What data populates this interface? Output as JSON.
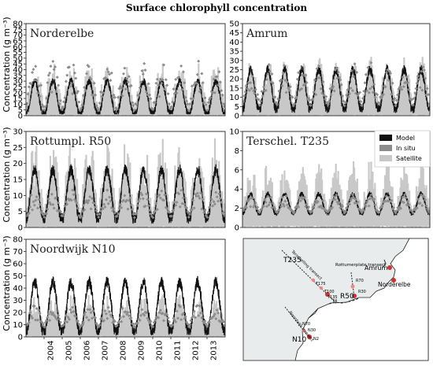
{
  "figure": {
    "title": "Surface chlorophyll concentration",
    "ylabel": "Concentration (g m⁻³)"
  },
  "colors": {
    "model": "#111111",
    "insitu": "#8c8c8c",
    "satellite": "#c8c8c8"
  },
  "legend": {
    "items": [
      "Model",
      "In situ",
      "Satellite"
    ],
    "placement": "top-right of Terschel. T235 panel"
  },
  "chart_data": [
    {
      "type": "line",
      "title": "Norderelbe",
      "ylim": [
        0,
        80
      ],
      "yticks": [
        0,
        5,
        10,
        15,
        20,
        25,
        30,
        35,
        40,
        45,
        50,
        55,
        60,
        65,
        70,
        75,
        80
      ],
      "ytick_labels": [
        "0",
        "5",
        "10",
        "15",
        "20",
        "25",
        "30",
        "35",
        "40",
        "45",
        "50",
        "55",
        "60",
        "65",
        "70",
        "75",
        "80"
      ],
      "xlim": [
        2003,
        2014
      ],
      "season": {
        "peak": 30,
        "base": 2,
        "sat_base": 5,
        "sat_peak": 40,
        "insitu_base": 4,
        "insitu_peak": 38
      }
    },
    {
      "type": "line",
      "title": "Amrum",
      "ylim": [
        0,
        50
      ],
      "yticks": [
        0,
        5,
        10,
        15,
        20,
        25,
        30,
        35,
        40,
        45,
        50
      ],
      "ytick_labels": [
        "0",
        "5",
        "10",
        "15",
        "20",
        "25",
        "30",
        "35",
        "40",
        "45",
        "50"
      ],
      "xlim": [
        2003,
        2014
      ],
      "season": {
        "peak": 25,
        "base": 4,
        "sat_base": 3,
        "sat_peak": 28,
        "insitu_base": 5,
        "insitu_peak": 24
      }
    },
    {
      "type": "line",
      "title": "Rottumpl. R50",
      "ylim": [
        0,
        30
      ],
      "yticks": [
        0,
        5,
        10,
        15,
        20,
        25,
        30
      ],
      "ytick_labels": [
        "0",
        "5",
        "10",
        "15",
        "20",
        "25",
        "30"
      ],
      "xlim": [
        2003,
        2014
      ],
      "season": {
        "peak": 18,
        "base": 3,
        "sat_base": 2,
        "sat_peak": 24,
        "insitu_base": 3,
        "insitu_peak": 10
      }
    },
    {
      "type": "line",
      "title": "Terschel. T235",
      "ylim": [
        0,
        10
      ],
      "yticks": [
        0,
        2,
        4,
        6,
        8,
        10
      ],
      "ytick_labels": [
        "0",
        "2",
        "4",
        "6",
        "8",
        "10"
      ],
      "xlim": [
        2003,
        2014
      ],
      "season": {
        "peak": 3.5,
        "base": 1.5,
        "sat_base": 1,
        "sat_peak": 6,
        "insitu_base": 1.5,
        "insitu_peak": 3
      }
    },
    {
      "type": "line",
      "title": "Noordwijk N10",
      "ylim": [
        0,
        80
      ],
      "yticks": [
        0,
        10,
        20,
        30,
        40,
        50,
        60,
        70,
        80
      ],
      "ytick_labels": [
        "0",
        "10",
        "20",
        "30",
        "40",
        "50",
        "60",
        "70",
        "80"
      ],
      "xlim": [
        2003,
        2014
      ],
      "xticks": [
        2004,
        2005,
        2006,
        2007,
        2008,
        2009,
        2010,
        2011,
        2012,
        2013
      ],
      "season": {
        "peak": 45,
        "base": 5,
        "sat_base": 4,
        "sat_peak": 30,
        "insitu_base": 8,
        "insitu_peak": 22
      }
    }
  ],
  "map": {
    "labels": {
      "t235": "T235",
      "r50": "R50",
      "n10": "N10",
      "amrum": "Amrum",
      "norderelbe": "Norderelbe",
      "terschelling_transect": "Terschelling transect",
      "rottumerplate_transect": "Rottumerplate transect",
      "noordwijk_transect": "Noordwijk transect"
    },
    "small_labels": [
      "R70",
      "R30",
      "N70",
      "N30",
      "N2",
      "T4",
      "T100",
      "T175",
      "T135"
    ]
  }
}
